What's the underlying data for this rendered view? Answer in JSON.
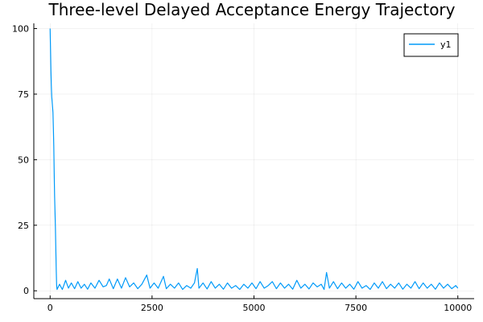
{
  "chart_data": {
    "type": "line",
    "title": "Three-level Delayed Acceptance Energy Trajectory",
    "xlabel": "",
    "ylabel": "",
    "xlim": [
      -400,
      10400
    ],
    "ylim": [
      -3,
      102
    ],
    "x_ticks": [
      0,
      2500,
      5000,
      7500,
      10000
    ],
    "y_ticks": [
      0,
      25,
      50,
      75,
      100
    ],
    "x_tick_labels": [
      "0",
      "2500",
      "5000",
      "7500",
      "10000"
    ],
    "y_tick_labels": [
      "0",
      "25",
      "50",
      "75",
      "100"
    ],
    "grid": true,
    "legend_position": "top-right",
    "series": [
      {
        "name": "y1",
        "color": "#009af9",
        "points": [
          [
            0,
            100
          ],
          [
            10,
            92
          ],
          [
            20,
            84
          ],
          [
            30,
            78
          ],
          [
            40,
            74
          ],
          [
            50,
            72
          ],
          [
            60,
            70
          ],
          [
            70,
            68
          ],
          [
            80,
            62
          ],
          [
            90,
            55
          ],
          [
            100,
            45
          ],
          [
            110,
            36
          ],
          [
            120,
            30
          ],
          [
            130,
            24
          ],
          [
            140,
            16
          ],
          [
            150,
            8
          ],
          [
            160,
            2
          ],
          [
            170,
            0.5
          ],
          [
            230,
            2.5
          ],
          [
            300,
            0.5
          ],
          [
            380,
            4
          ],
          [
            450,
            1
          ],
          [
            520,
            3
          ],
          [
            600,
            0.8
          ],
          [
            680,
            3.5
          ],
          [
            760,
            1
          ],
          [
            840,
            2.5
          ],
          [
            920,
            0.6
          ],
          [
            1000,
            3
          ],
          [
            1100,
            1
          ],
          [
            1200,
            4
          ],
          [
            1300,
            1.5
          ],
          [
            1380,
            2
          ],
          [
            1450,
            4.5
          ],
          [
            1550,
            0.8
          ],
          [
            1650,
            4.5
          ],
          [
            1750,
            1
          ],
          [
            1850,
            5
          ],
          [
            1950,
            1.5
          ],
          [
            2050,
            3
          ],
          [
            2150,
            0.8
          ],
          [
            2250,
            2.5
          ],
          [
            2370,
            6
          ],
          [
            2450,
            1
          ],
          [
            2550,
            3
          ],
          [
            2650,
            1
          ],
          [
            2780,
            5.5
          ],
          [
            2850,
            0.8
          ],
          [
            2950,
            2.5
          ],
          [
            3050,
            1
          ],
          [
            3150,
            3
          ],
          [
            3250,
            0.5
          ],
          [
            3350,
            2
          ],
          [
            3450,
            1
          ],
          [
            3540,
            3
          ],
          [
            3610,
            8.5
          ],
          [
            3650,
            1
          ],
          [
            3750,
            3
          ],
          [
            3850,
            0.7
          ],
          [
            3950,
            3.5
          ],
          [
            4050,
            1
          ],
          [
            4150,
            2.5
          ],
          [
            4250,
            0.6
          ],
          [
            4350,
            3
          ],
          [
            4450,
            1
          ],
          [
            4550,
            2
          ],
          [
            4650,
            0.5
          ],
          [
            4750,
            2.5
          ],
          [
            4850,
            1
          ],
          [
            4950,
            3
          ],
          [
            5050,
            0.8
          ],
          [
            5150,
            3.5
          ],
          [
            5250,
            1
          ],
          [
            5350,
            2
          ],
          [
            5450,
            3.5
          ],
          [
            5550,
            0.8
          ],
          [
            5650,
            3
          ],
          [
            5750,
            1
          ],
          [
            5850,
            2.5
          ],
          [
            5950,
            0.6
          ],
          [
            6050,
            4
          ],
          [
            6150,
            1
          ],
          [
            6250,
            2.5
          ],
          [
            6350,
            0.7
          ],
          [
            6450,
            3
          ],
          [
            6550,
            1.5
          ],
          [
            6650,
            2.5
          ],
          [
            6720,
            0.5
          ],
          [
            6780,
            7
          ],
          [
            6850,
            1
          ],
          [
            6950,
            3.5
          ],
          [
            7050,
            0.8
          ],
          [
            7150,
            3
          ],
          [
            7250,
            1
          ],
          [
            7350,
            2.5
          ],
          [
            7450,
            0.6
          ],
          [
            7550,
            3.5
          ],
          [
            7650,
            1
          ],
          [
            7750,
            2
          ],
          [
            7850,
            0.5
          ],
          [
            7950,
            3
          ],
          [
            8050,
            1
          ],
          [
            8150,
            3.5
          ],
          [
            8250,
            0.8
          ],
          [
            8350,
            2.5
          ],
          [
            8450,
            1
          ],
          [
            8550,
            3
          ],
          [
            8650,
            0.6
          ],
          [
            8750,
            2.5
          ],
          [
            8850,
            1
          ],
          [
            8950,
            3.5
          ],
          [
            9050,
            0.8
          ],
          [
            9150,
            3
          ],
          [
            9250,
            1
          ],
          [
            9350,
            2.5
          ],
          [
            9450,
            0.6
          ],
          [
            9550,
            3
          ],
          [
            9650,
            1
          ],
          [
            9750,
            2.5
          ],
          [
            9850,
            0.8
          ],
          [
            9950,
            2
          ],
          [
            10000,
            1
          ]
        ]
      }
    ]
  }
}
